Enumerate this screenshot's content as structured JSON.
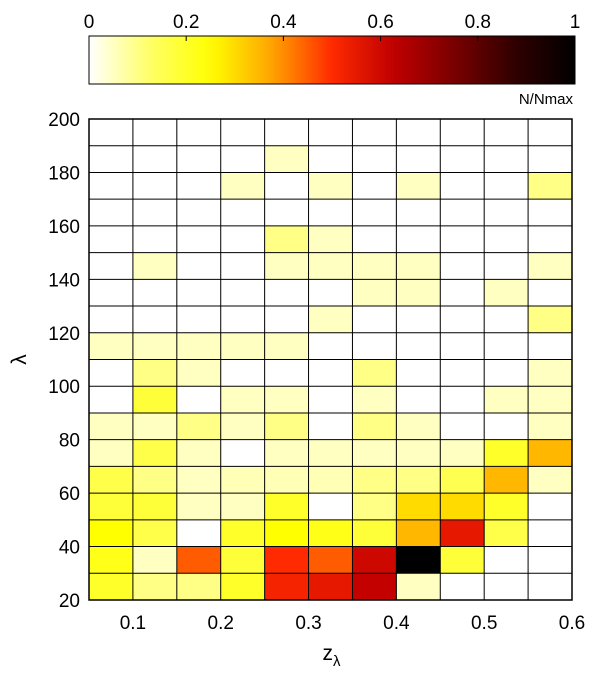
{
  "chart_data": {
    "type": "heatmap",
    "xlabel": "z",
    "xlabel_subscript": "λ",
    "ylabel": "λ",
    "x_edges": [
      0.05,
      0.1,
      0.15,
      0.2,
      0.25,
      0.3,
      0.35,
      0.4,
      0.45,
      0.5,
      0.55,
      0.6
    ],
    "y_edges": [
      20,
      30,
      40,
      50,
      60,
      70,
      80,
      90,
      100,
      110,
      120,
      130,
      140,
      150,
      160,
      170,
      180,
      190,
      200
    ],
    "xlim": [
      0.05,
      0.6
    ],
    "ylim": [
      20,
      200
    ],
    "x_ticks": [
      "0.1",
      "0.2",
      "0.3",
      "0.4",
      "0.5",
      "0.6"
    ],
    "y_ticks": [
      "20",
      "40",
      "60",
      "80",
      "100",
      "120",
      "140",
      "160",
      "180",
      "200"
    ],
    "grid": true,
    "colorbar": {
      "label": "N/Nmax",
      "range": [
        0,
        1
      ],
      "ticks": [
        "0",
        "0.2",
        "0.4",
        "0.6",
        "0.8",
        "1"
      ],
      "placement": "top",
      "colormap": [
        "#ffffff",
        "#ffff66",
        "#ffff00",
        "#ffa500",
        "#ff2a00",
        "#c00000",
        "#7a0000",
        "#300000",
        "#000000"
      ]
    },
    "values_description": "N/Nmax per cell; rows ordered from lambda 20-30 (first) up to 190-200 (last); columns ordered from z 0.05-0.10 to 0.55-0.60; 0 = empty cell",
    "values": [
      [
        0.2,
        0.1,
        0.1,
        0.2,
        0.52,
        0.55,
        0.62,
        0.05,
        0.0,
        0.0,
        0.0
      ],
      [
        0.22,
        0.05,
        0.45,
        0.18,
        0.5,
        0.45,
        0.6,
        1.0,
        0.18,
        0.0,
        0.0
      ],
      [
        0.25,
        0.16,
        0.0,
        0.2,
        0.25,
        0.22,
        0.18,
        0.35,
        0.55,
        0.16,
        0.0
      ],
      [
        0.18,
        0.18,
        0.05,
        0.05,
        0.2,
        0.0,
        0.1,
        0.3,
        0.3,
        0.2,
        0.0
      ],
      [
        0.16,
        0.1,
        0.05,
        0.06,
        0.06,
        0.06,
        0.1,
        0.1,
        0.15,
        0.35,
        0.05
      ],
      [
        0.05,
        0.16,
        0.05,
        0.0,
        0.05,
        0.05,
        0.05,
        0.05,
        0.05,
        0.2,
        0.35
      ],
      [
        0.05,
        0.05,
        0.1,
        0.05,
        0.1,
        0.0,
        0.1,
        0.05,
        0.0,
        0.0,
        0.05
      ],
      [
        0.0,
        0.18,
        0.0,
        0.05,
        0.05,
        0.0,
        0.05,
        0.0,
        0.0,
        0.05,
        0.05
      ],
      [
        0.0,
        0.1,
        0.05,
        0.0,
        0.0,
        0.0,
        0.1,
        0.0,
        0.0,
        0.0,
        0.05
      ],
      [
        0.05,
        0.05,
        0.05,
        0.05,
        0.05,
        0.0,
        0.0,
        0.0,
        0.0,
        0.0,
        0.0
      ],
      [
        0.0,
        0.0,
        0.0,
        0.0,
        0.0,
        0.05,
        0.0,
        0.0,
        0.0,
        0.0,
        0.1
      ],
      [
        0.0,
        0.0,
        0.0,
        0.0,
        0.0,
        0.0,
        0.05,
        0.05,
        0.0,
        0.05,
        0.0
      ],
      [
        0.0,
        0.05,
        0.0,
        0.0,
        0.05,
        0.05,
        0.05,
        0.05,
        0.0,
        0.0,
        0.05
      ],
      [
        0.0,
        0.0,
        0.0,
        0.0,
        0.1,
        0.05,
        0.0,
        0.0,
        0.0,
        0.0,
        0.0
      ],
      [
        0.0,
        0.0,
        0.0,
        0.0,
        0.0,
        0.0,
        0.0,
        0.0,
        0.0,
        0.0,
        0.0
      ],
      [
        0.0,
        0.0,
        0.0,
        0.05,
        0.0,
        0.05,
        0.0,
        0.05,
        0.0,
        0.0,
        0.1
      ],
      [
        0.0,
        0.0,
        0.0,
        0.0,
        0.05,
        0.0,
        0.0,
        0.0,
        0.0,
        0.0,
        0.0
      ],
      [
        0.0,
        0.0,
        0.0,
        0.0,
        0.0,
        0.0,
        0.0,
        0.0,
        0.0,
        0.0,
        0.0
      ]
    ]
  }
}
